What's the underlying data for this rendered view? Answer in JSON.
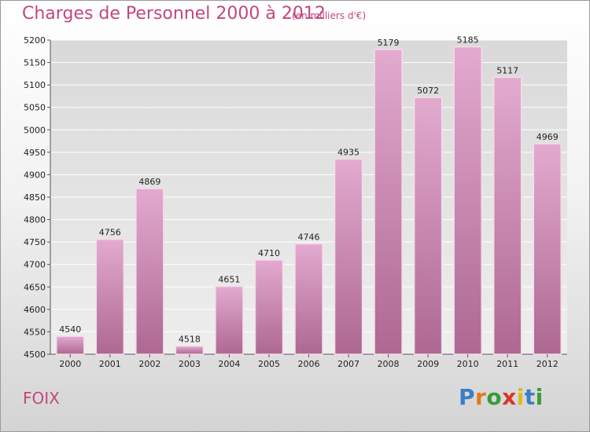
{
  "header": {
    "title": "Charges de Personnel 2000 à 2012",
    "unit_note": "(en milliers d'€)"
  },
  "footer": {
    "commune": "FOIX",
    "brand": "Proxiti"
  },
  "colors": {
    "accent": "#c2477d",
    "bar_top": "#e0a7cc",
    "bar_bottom": "#b06a94"
  },
  "chart_data": {
    "type": "bar",
    "title": "Charges de Personnel 2000 à 2012",
    "subtitle": "(en milliers d'€)",
    "categories": [
      "2000",
      "2001",
      "2002",
      "2003",
      "2004",
      "2005",
      "2006",
      "2007",
      "2008",
      "2009",
      "2010",
      "2011",
      "2012"
    ],
    "values": [
      4540,
      4756,
      4869,
      4518,
      4651,
      4710,
      4746,
      4935,
      5179,
      5072,
      5185,
      5117,
      4969
    ],
    "ylim": [
      4500,
      5200
    ],
    "yticks": [
      4500,
      4550,
      4600,
      4650,
      4700,
      4750,
      4800,
      4850,
      4900,
      4950,
      5000,
      5050,
      5100,
      5150,
      5200
    ],
    "grid": true,
    "legend": "none"
  }
}
